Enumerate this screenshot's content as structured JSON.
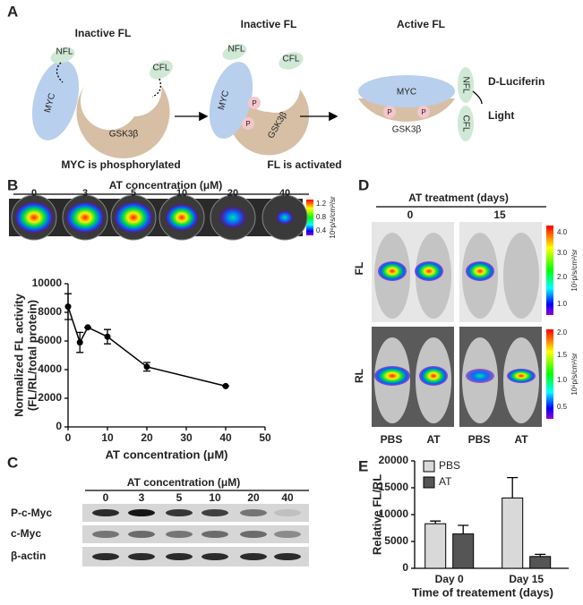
{
  "panel_a": {
    "label": "A",
    "titles": [
      "Inactive FL",
      "Inactive FL",
      "Active FL"
    ],
    "nfl": "NFL",
    "cfl": "CFL",
    "myc": "MYC",
    "gsk": "GSK3β",
    "p": "P",
    "substrate": "D-Luciferin",
    "output": "Light",
    "captions": [
      "MYC is phosphorylated",
      "FL is activated"
    ]
  },
  "panel_b": {
    "label": "B",
    "title": "AT concentration (μM)",
    "wells": [
      "0",
      "3",
      "5",
      "10",
      "20",
      "40"
    ],
    "colorbar_ticks": [
      "1.2",
      "0.8",
      "0.4"
    ],
    "colorbar_unit": "10⁶p/s/cm²/sr"
  },
  "panel_c": {
    "label": "C",
    "title": "AT concentration (μM)",
    "lanes": [
      "0",
      "3",
      "5",
      "10",
      "20",
      "40"
    ],
    "rows": [
      "P-c-Myc",
      "c-Myc",
      "β-actin"
    ]
  },
  "panel_d": {
    "label": "D",
    "title": "AT  treatment (days)",
    "days": [
      "0",
      "15"
    ],
    "rows": [
      "FL",
      "RL"
    ],
    "groups": [
      "PBS",
      "AT",
      "PBS",
      "AT"
    ],
    "fl_colorbar": {
      "ticks": [
        "4.0",
        "3.0",
        "2.0",
        "1.0"
      ],
      "unit": "10⁵p/s/cm²/sr"
    },
    "rl_colorbar": {
      "ticks": [
        "2.0",
        "1.5",
        "1.0",
        "0.5"
      ],
      "unit": "10⁶p/s/cm²/sr"
    }
  },
  "panel_e": {
    "label": "E"
  },
  "chart_data": [
    {
      "type": "line",
      "x": [
        0,
        3,
        5,
        10,
        20,
        40
      ],
      "values": [
        8400,
        5900,
        6950,
        6300,
        4200,
        2850
      ],
      "errors": [
        900,
        700,
        0,
        500,
        300,
        0
      ],
      "color": "#000000",
      "xlim": [
        0,
        50
      ],
      "xticks": [
        0,
        10,
        20,
        30,
        40,
        50
      ],
      "ylim": [
        0,
        10000
      ],
      "yticks": [
        0,
        2000,
        4000,
        6000,
        8000,
        10000
      ],
      "xlabel": "AT concentration (μM)",
      "ylabel": [
        "Normalized FL activity",
        "(FL/RL/total protein)"
      ]
    },
    {
      "type": "bar",
      "categories": [
        "Day 0",
        "Day 15"
      ],
      "series": [
        {
          "name": "PBS",
          "color": "#d9d9d9",
          "values": [
            8300,
            13100
          ],
          "errors": [
            500,
            3800
          ]
        },
        {
          "name": "AT",
          "color": "#555555",
          "values": [
            6400,
            2200
          ],
          "errors": [
            1600,
            400
          ]
        }
      ],
      "ylim": [
        0,
        20000
      ],
      "yticks": [
        0,
        5000,
        10000,
        15000,
        20000
      ],
      "ylabel": "Relative FL/RL",
      "xlabel": "Time of treatement (days)",
      "legend": "upper-left"
    }
  ]
}
